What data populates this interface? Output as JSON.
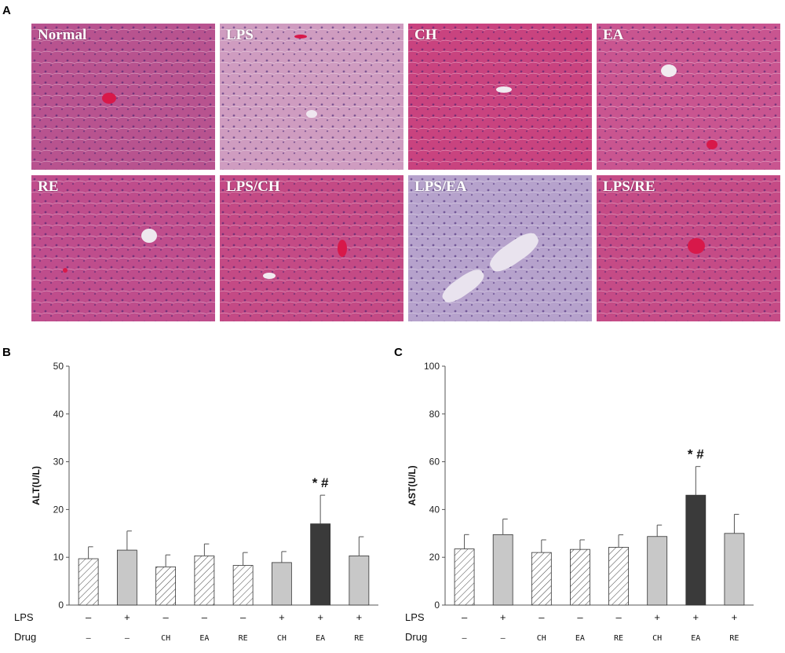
{
  "panel_labels": {
    "a": "A",
    "b": "B",
    "c": "C"
  },
  "histology": {
    "tiles": [
      {
        "label": "Normal",
        "stain": "#b8538f"
      },
      {
        "label": "LPS",
        "stain": "#cf9cc0"
      },
      {
        "label": "CH",
        "stain": "#c9437f"
      },
      {
        "label": "EA",
        "stain": "#c95590"
      },
      {
        "label": "RE",
        "stain": "#bf4d8c"
      },
      {
        "label": "LPS/CH",
        "stain": "#c44a85"
      },
      {
        "label": "LPS/EA",
        "stain": "#b6a2cc"
      },
      {
        "label": "LPS/RE",
        "stain": "#c54b86"
      }
    ]
  },
  "colors": {
    "gray_bar": "#c8c8c8",
    "dark_bar": "#3a3a3a",
    "hatch_bg": "#ffffff",
    "axis": "#555555"
  },
  "chart_data": [
    {
      "type": "bar",
      "ylabel": "ALT(U/L)",
      "ylim": [
        0,
        50
      ],
      "yticks": [
        0,
        10,
        20,
        30,
        40,
        50
      ],
      "lps_row_label": "LPS",
      "drug_row_label": "Drug",
      "categories_lps": [
        "–",
        "+",
        "–",
        "–",
        "–",
        "+",
        "+",
        "+"
      ],
      "categories_drug": [
        "–",
        "–",
        "CH",
        "EA",
        "RE",
        "CH",
        "EA",
        "RE"
      ],
      "values": [
        9.7,
        11.5,
        8.0,
        10.3,
        8.3,
        8.9,
        17.0,
        10.3
      ],
      "errors": [
        2.5,
        4.0,
        2.5,
        2.5,
        2.7,
        2.3,
        6.0,
        4.0
      ],
      "styles": [
        "hatch",
        "gray",
        "hatch",
        "hatch",
        "hatch",
        "gray",
        "dark",
        "gray"
      ],
      "annotation": {
        "index": 6,
        "text": "* #"
      }
    },
    {
      "type": "bar",
      "ylabel": "AST(U/L)",
      "ylim": [
        0,
        100
      ],
      "yticks": [
        0,
        20,
        40,
        60,
        80,
        100
      ],
      "lps_row_label": "LPS",
      "drug_row_label": "Drug",
      "categories_lps": [
        "–",
        "+",
        "–",
        "–",
        "–",
        "+",
        "+",
        "+"
      ],
      "categories_drug": [
        "–",
        "–",
        "CH",
        "EA",
        "RE",
        "CH",
        "EA",
        "RE"
      ],
      "values": [
        23.5,
        29.5,
        22.0,
        23.3,
        24.2,
        28.7,
        46.0,
        30.0
      ],
      "errors": [
        6.0,
        6.5,
        5.3,
        4.0,
        5.2,
        4.8,
        12.0,
        8.0
      ],
      "styles": [
        "hatch",
        "gray",
        "hatch",
        "hatch",
        "hatch",
        "gray",
        "dark",
        "gray"
      ],
      "annotation": {
        "index": 6,
        "text": "* #"
      }
    }
  ]
}
